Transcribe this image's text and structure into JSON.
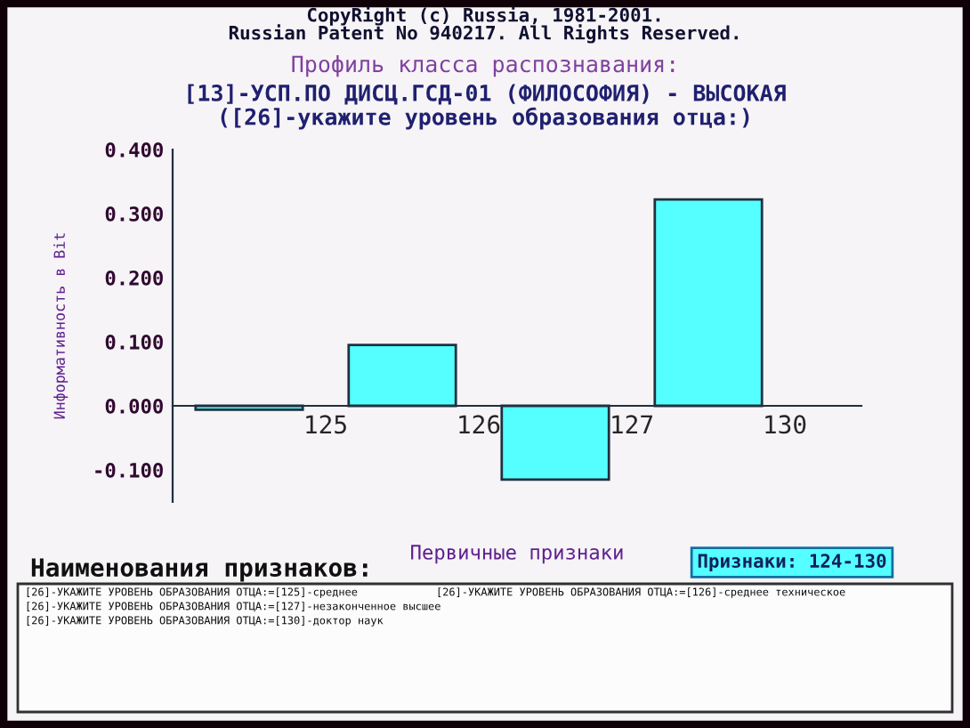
{
  "chart_data": {
    "type": "bar",
    "title": "Профиль класса распознавания:",
    "subtitle": "[13]-УСП.ПО ДИСЦ.ГСД-01 (ФИЛОСОФИЯ) - ВЫСОКАЯ\n([26]-укажите уровень образования отца:)",
    "xlabel": "Первичные признаки",
    "ylabel": "Информативность в Bit",
    "categories": [
      "125",
      "126",
      "127",
      "130"
    ],
    "values": [
      -0.006,
      0.095,
      -0.115,
      0.322
    ],
    "color": "#55ffff",
    "ylim": [
      -0.15,
      0.4
    ],
    "yticks": [
      {
        "value": 0.4,
        "label": "0.400"
      },
      {
        "value": 0.3,
        "label": "0.300"
      },
      {
        "value": 0.2,
        "label": "0.200"
      },
      {
        "value": 0.1,
        "label": "0.100"
      },
      {
        "value": 0,
        "label": "0.000"
      },
      {
        "value": -0.1,
        "label": "-0.100"
      }
    ],
    "grid": false,
    "annotations": [
      "CopyRight (c) Russia, 1981-2001.",
      "Russian Patent No 940217. All Rights Reserved.",
      "Наименования признаков:",
      "Признаки: 124-130",
      "[26]-УКАЖИТЕ УРОВЕНЬ ОБРАЗОВАНИЯ ОТЦА:=[125]-среднее",
      "[26]-УКАЖИТЕ УРОВЕНЬ ОБРАЗОВАНИЯ ОТЦА:=[126]-среднее техническое",
      "[26]-УКАЖИТЕ УРОВЕНЬ ОБРАЗОВАНИЯ ОТЦА:=[127]-незаконченное высшее",
      "[26]-УКАЖИТЕ УРОВЕНЬ ОБРАЗОВАНИЯ ОТЦА:=[130]-доктор наук"
    ]
  }
}
